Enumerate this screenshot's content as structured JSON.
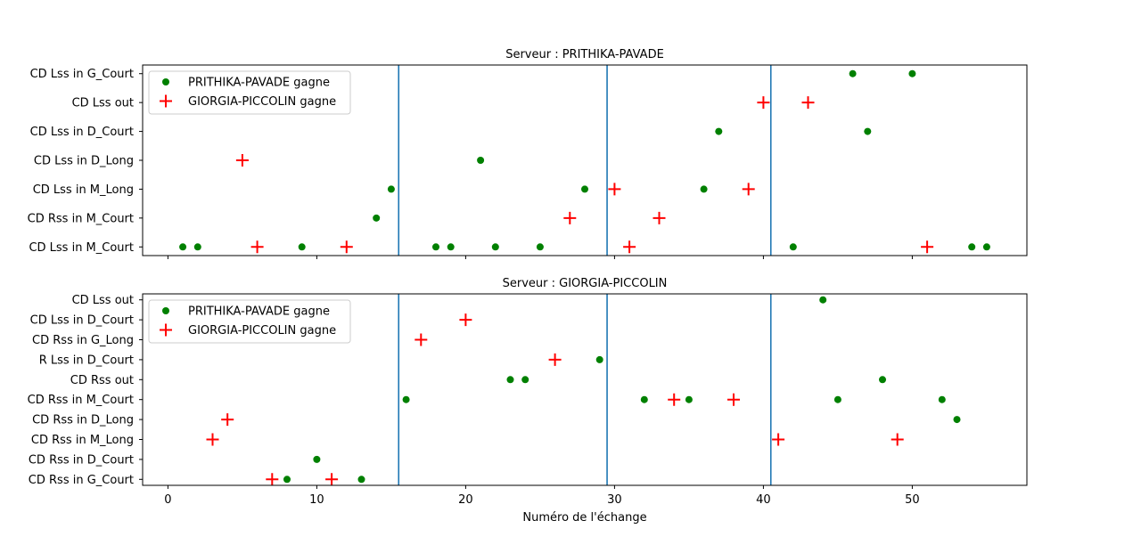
{
  "xlabel": "Numéro de l'échange",
  "x_ticks": [
    0,
    10,
    20,
    30,
    40,
    50
  ],
  "xlim": [
    -1.7,
    57.7
  ],
  "separators": [
    15.5,
    29.5,
    40.5
  ],
  "colors": {
    "green": "#008000",
    "red": "#ff0000",
    "line": "#1f77b4"
  },
  "legend": {
    "green_label": "PRITHIKA-PAVADE gagne",
    "red_label": "GIORGIA-PICCOLIN gagne",
    "placement": "upper left"
  },
  "chart_data": [
    {
      "type": "scatter",
      "title": "Serveur : PRITHIKA-PAVADE",
      "categories": [
        "CD Lss in M_Court",
        "CD Rss in M_Court",
        "CD Lss in M_Long",
        "CD Lss in D_Long",
        "CD Lss in D_Court",
        "CD Lss out",
        "CD Lss in G_Court"
      ],
      "series": [
        {
          "name": "PRITHIKA-PAVADE gagne",
          "points": [
            {
              "x": 1,
              "y": "CD Lss in M_Court"
            },
            {
              "x": 2,
              "y": "CD Lss in M_Court"
            },
            {
              "x": 9,
              "y": "CD Lss in M_Court"
            },
            {
              "x": 14,
              "y": "CD Rss in M_Court"
            },
            {
              "x": 15,
              "y": "CD Lss in M_Long"
            },
            {
              "x": 18,
              "y": "CD Lss in M_Court"
            },
            {
              "x": 19,
              "y": "CD Lss in M_Court"
            },
            {
              "x": 21,
              "y": "CD Lss in D_Long"
            },
            {
              "x": 22,
              "y": "CD Lss in M_Court"
            },
            {
              "x": 25,
              "y": "CD Lss in M_Court"
            },
            {
              "x": 28,
              "y": "CD Lss in M_Long"
            },
            {
              "x": 36,
              "y": "CD Lss in M_Long"
            },
            {
              "x": 37,
              "y": "CD Lss in D_Court"
            },
            {
              "x": 42,
              "y": "CD Lss in M_Court"
            },
            {
              "x": 46,
              "y": "CD Lss in G_Court"
            },
            {
              "x": 47,
              "y": "CD Lss in D_Court"
            },
            {
              "x": 50,
              "y": "CD Lss in G_Court"
            },
            {
              "x": 54,
              "y": "CD Lss in M_Court"
            },
            {
              "x": 55,
              "y": "CD Lss in M_Court"
            }
          ]
        },
        {
          "name": "GIORGIA-PICCOLIN gagne",
          "points": [
            {
              "x": 5,
              "y": "CD Lss in D_Long"
            },
            {
              "x": 6,
              "y": "CD Lss in M_Court"
            },
            {
              "x": 12,
              "y": "CD Lss in M_Court"
            },
            {
              "x": 27,
              "y": "CD Rss in M_Court"
            },
            {
              "x": 30,
              "y": "CD Lss in M_Long"
            },
            {
              "x": 31,
              "y": "CD Lss in M_Court"
            },
            {
              "x": 33,
              "y": "CD Rss in M_Court"
            },
            {
              "x": 39,
              "y": "CD Lss in M_Long"
            },
            {
              "x": 40,
              "y": "CD Lss out"
            },
            {
              "x": 43,
              "y": "CD Lss out"
            },
            {
              "x": 51,
              "y": "CD Lss in M_Court"
            }
          ]
        }
      ]
    },
    {
      "type": "scatter",
      "title": "Serveur : GIORGIA-PICCOLIN",
      "categories": [
        "CD Rss in G_Court",
        "CD Rss in D_Court",
        "CD Rss in M_Long",
        "CD Rss in D_Long",
        "CD Rss in M_Court",
        "CD Rss out",
        "R Lss in D_Court",
        "CD Rss in G_Long",
        "CD Lss in D_Court",
        "CD Lss out"
      ],
      "series": [
        {
          "name": "PRITHIKA-PAVADE gagne",
          "points": [
            {
              "x": 8,
              "y": "CD Rss in G_Court"
            },
            {
              "x": 10,
              "y": "CD Rss in D_Court"
            },
            {
              "x": 13,
              "y": "CD Rss in G_Court"
            },
            {
              "x": 16,
              "y": "CD Rss in M_Court"
            },
            {
              "x": 23,
              "y": "CD Rss out"
            },
            {
              "x": 24,
              "y": "CD Rss out"
            },
            {
              "x": 29,
              "y": "R Lss in D_Court"
            },
            {
              "x": 32,
              "y": "CD Rss in M_Court"
            },
            {
              "x": 35,
              "y": "CD Rss in M_Court"
            },
            {
              "x": 44,
              "y": "CD Lss out"
            },
            {
              "x": 45,
              "y": "CD Rss in M_Court"
            },
            {
              "x": 48,
              "y": "CD Rss out"
            },
            {
              "x": 52,
              "y": "CD Rss in M_Court"
            },
            {
              "x": 53,
              "y": "CD Rss in D_Long"
            }
          ]
        },
        {
          "name": "GIORGIA-PICCOLIN gagne",
          "points": [
            {
              "x": 3,
              "y": "CD Rss in M_Long"
            },
            {
              "x": 4,
              "y": "CD Rss in D_Long"
            },
            {
              "x": 7,
              "y": "CD Rss in G_Court"
            },
            {
              "x": 11,
              "y": "CD Rss in G_Court"
            },
            {
              "x": 17,
              "y": "CD Rss in G_Long"
            },
            {
              "x": 20,
              "y": "CD Lss in D_Court"
            },
            {
              "x": 26,
              "y": "R Lss in D_Court"
            },
            {
              "x": 34,
              "y": "CD Rss in M_Court"
            },
            {
              "x": 38,
              "y": "CD Rss in M_Court"
            },
            {
              "x": 41,
              "y": "CD Rss in M_Long"
            },
            {
              "x": 49,
              "y": "CD Rss in M_Long"
            }
          ]
        }
      ]
    }
  ]
}
